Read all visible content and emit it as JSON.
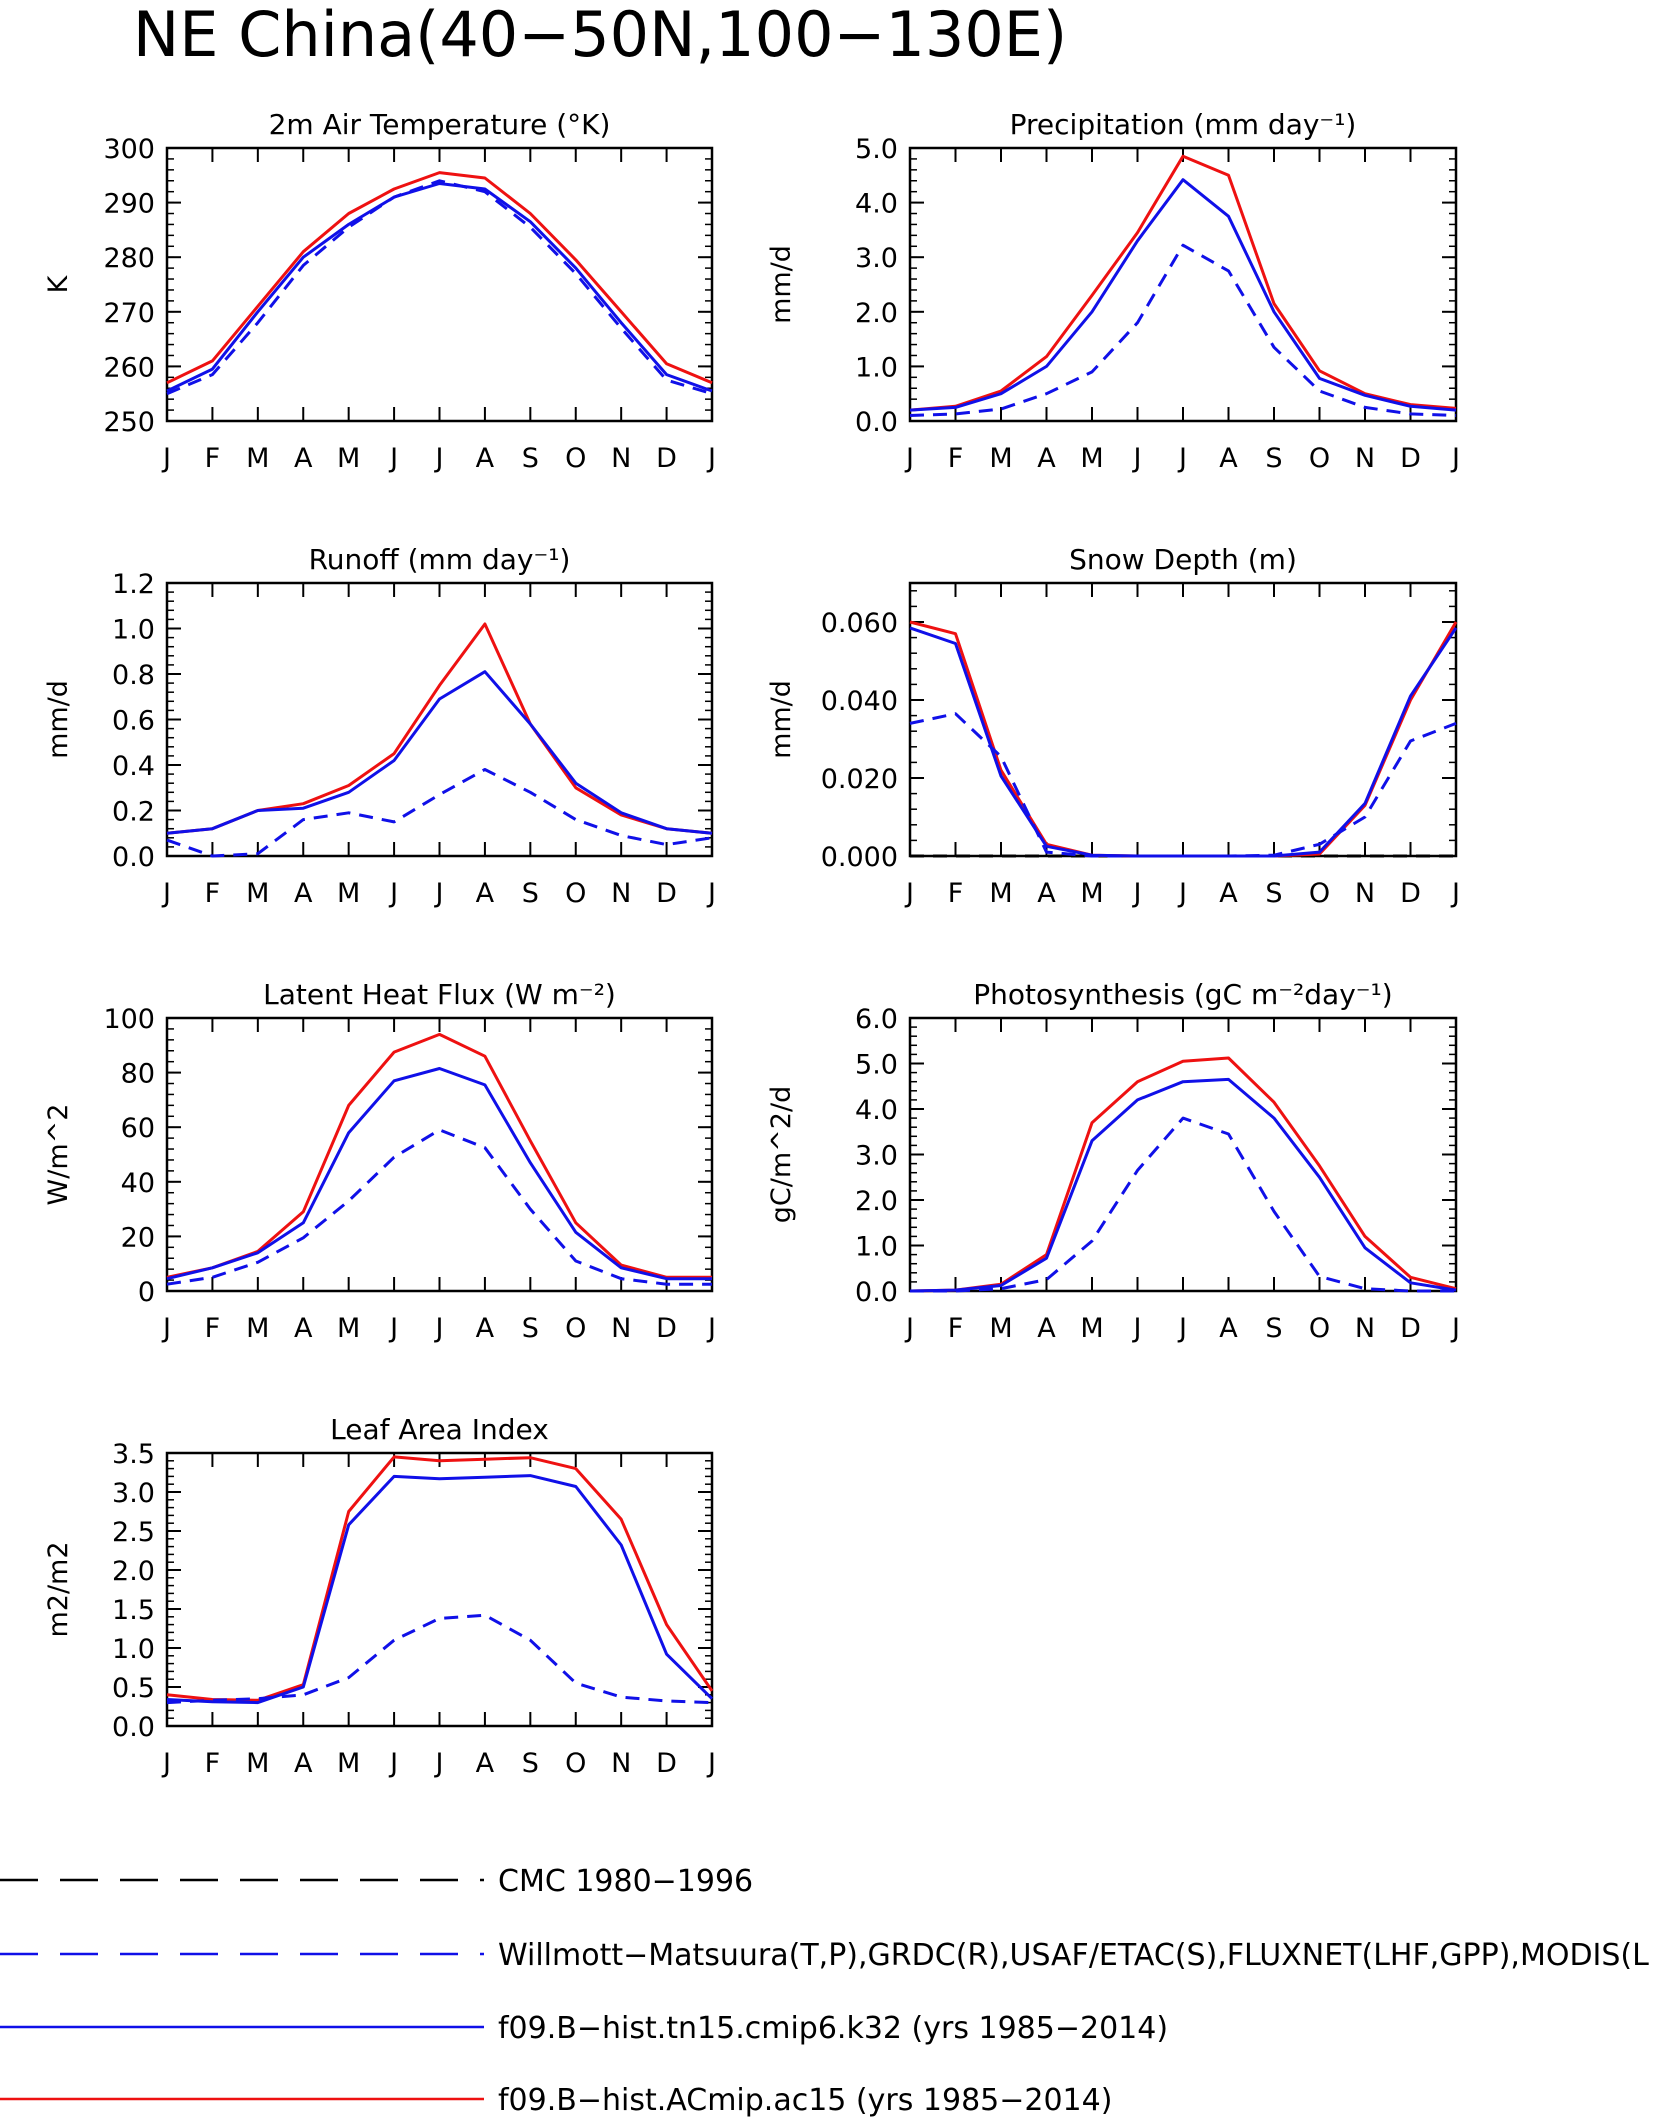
{
  "figure": {
    "title": "NE China(40−50N,100−130E)"
  },
  "colors": {
    "obs_black": "#000000",
    "obs_blue": "#1010e8",
    "model_blue": "#1010e8",
    "model_red": "#ee1111"
  },
  "legend": [
    {
      "label": "CMC 1980−1996",
      "color": "#000000",
      "style": "dashed"
    },
    {
      "label": "Willmott−Matsuura(T,P),GRDC(R),USAF/ETAC(S),FLUXNET(LHF,GPP),MODIS(L",
      "color": "#1010e8",
      "style": "dashed"
    },
    {
      "label": "f09.B−hist.tn15.cmip6.k32 (yrs 1985−2014)",
      "color": "#1010e8",
      "style": "solid"
    },
    {
      "label": "f09.B−hist.ACmip.ac15 (yrs 1985−2014)",
      "color": "#ee1111",
      "style": "solid"
    }
  ],
  "chart_data": [
    {
      "type": "line",
      "title": "2m Air Temperature (°K)",
      "xlabel": "",
      "ylabel": "K",
      "categories": [
        "J",
        "F",
        "M",
        "A",
        "M",
        "J",
        "J",
        "A",
        "S",
        "O",
        "N",
        "D",
        "J"
      ],
      "ylim": [
        250,
        300
      ],
      "yticks": [
        "250",
        "260",
        "270",
        "280",
        "290",
        "300"
      ],
      "series": [
        {
          "name": "f09.B−hist.ACmip.ac15 (yrs 1985−2014)",
          "style": "red-solid",
          "values": [
            257,
            261,
            271,
            281,
            288,
            292.5,
            295.5,
            294.5,
            288,
            279.5,
            270,
            260.5,
            257
          ]
        },
        {
          "name": "f09.B−hist.tn15.cmip6.k32 (yrs 1985−2014)",
          "style": "blue-solid",
          "values": [
            255.5,
            259.5,
            270,
            280,
            286,
            291,
            293.5,
            292.5,
            286.5,
            278,
            268,
            258.5,
            255.5
          ]
        },
        {
          "name": "Willmott−Matsuura(T,P),GRDC(R),USAF/ETAC(S),FLUXNET(LHF,GPP),MODIS(L",
          "style": "blue-dashed",
          "values": [
            255,
            258.5,
            268,
            278.5,
            285.5,
            291,
            294,
            292,
            285.5,
            277,
            267,
            257.5,
            255
          ]
        }
      ]
    },
    {
      "type": "line",
      "title": "Precipitation (mm day⁻¹)",
      "xlabel": "",
      "ylabel": "mm/d",
      "categories": [
        "J",
        "F",
        "M",
        "A",
        "M",
        "J",
        "J",
        "A",
        "S",
        "O",
        "N",
        "D",
        "J"
      ],
      "ylim": [
        0,
        5
      ],
      "yticks": [
        "0.0",
        "1.0",
        "2.0",
        "3.0",
        "4.0",
        "5.0"
      ],
      "series": [
        {
          "name": "f09.B−hist.ACmip.ac15 (yrs 1985−2014)",
          "style": "red-solid",
          "values": [
            0.2,
            0.27,
            0.55,
            1.18,
            2.3,
            3.45,
            4.85,
            4.5,
            2.15,
            0.92,
            0.5,
            0.3,
            0.23
          ]
        },
        {
          "name": "f09.B−hist.tn15.cmip6.k32 (yrs 1985−2014)",
          "style": "blue-solid",
          "values": [
            0.2,
            0.25,
            0.5,
            1.0,
            2.0,
            3.3,
            4.42,
            3.75,
            2.0,
            0.78,
            0.47,
            0.27,
            0.2
          ]
        },
        {
          "name": "Willmott−Matsuura(T,P),GRDC(R),USAF/ETAC(S),FLUXNET(LHF,GPP),MODIS(L",
          "style": "blue-dashed",
          "values": [
            0.1,
            0.13,
            0.22,
            0.5,
            0.9,
            1.8,
            3.22,
            2.75,
            1.35,
            0.55,
            0.25,
            0.13,
            0.1
          ]
        }
      ]
    },
    {
      "type": "line",
      "title": "Runoff (mm day⁻¹)",
      "xlabel": "",
      "ylabel": "mm/d",
      "categories": [
        "J",
        "F",
        "M",
        "A",
        "M",
        "J",
        "J",
        "A",
        "S",
        "O",
        "N",
        "D",
        "J"
      ],
      "ylim": [
        0,
        1.2
      ],
      "yticks": [
        "0.0",
        "0.2",
        "0.4",
        "0.6",
        "0.8",
        "1.0",
        "1.2"
      ],
      "series": [
        {
          "name": "f09.B−hist.ACmip.ac15 (yrs 1985−2014)",
          "style": "red-solid",
          "values": [
            0.1,
            0.12,
            0.2,
            0.23,
            0.31,
            0.45,
            0.75,
            1.02,
            0.58,
            0.3,
            0.18,
            0.12,
            0.1
          ]
        },
        {
          "name": "f09.B−hist.tn15.cmip6.k32 (yrs 1985−2014)",
          "style": "blue-solid",
          "values": [
            0.1,
            0.12,
            0.2,
            0.21,
            0.28,
            0.42,
            0.69,
            0.81,
            0.58,
            0.32,
            0.19,
            0.12,
            0.1
          ]
        },
        {
          "name": "Willmott−Matsuura(T,P),GRDC(R),USAF/ETAC(S),FLUXNET(LHF,GPP),MODIS(L",
          "style": "blue-dashed",
          "values": [
            0.07,
            0.0,
            0.01,
            0.16,
            0.19,
            0.15,
            0.27,
            0.38,
            0.28,
            0.16,
            0.09,
            0.05,
            0.08
          ]
        }
      ]
    },
    {
      "type": "line",
      "title": "Snow Depth (m)",
      "xlabel": "",
      "ylabel": "mm/d",
      "categories": [
        "J",
        "F",
        "M",
        "A",
        "M",
        "J",
        "J",
        "A",
        "S",
        "O",
        "N",
        "D",
        "J"
      ],
      "ylim": [
        0,
        0.07
      ],
      "yticks": [
        "0.000",
        "0.020",
        "0.040",
        "0.060"
      ],
      "ytick_values": [
        0,
        0.02,
        0.04,
        0.06
      ],
      "series": [
        {
          "name": "CMC 1980−1996",
          "style": "black-dashed",
          "values": [
            0,
            0,
            0,
            0,
            0,
            0,
            0,
            0,
            0,
            0,
            0,
            0,
            0
          ]
        },
        {
          "name": "f09.B−hist.ACmip.ac15 (yrs 1985−2014)",
          "style": "red-solid",
          "values": [
            0.06,
            0.057,
            0.022,
            0.003,
            0.0002,
            0,
            0,
            0,
            0,
            0.0005,
            0.013,
            0.04,
            0.06
          ]
        },
        {
          "name": "f09.B−hist.tn15.cmip6.k32 (yrs 1985−2014)",
          "style": "blue-solid",
          "values": [
            0.0585,
            0.0545,
            0.0205,
            0.0025,
            0.0002,
            0,
            0,
            0,
            0,
            0.001,
            0.0135,
            0.041,
            0.0585
          ]
        },
        {
          "name": "Willmott−Matsuura(T,P),GRDC(R),USAF/ETAC(S),FLUXNET(LHF,GPP),MODIS(L",
          "style": "blue-dashed",
          "values": [
            0.034,
            0.0365,
            0.0255,
            0.001,
            0,
            0,
            0,
            0,
            0.0002,
            0.003,
            0.01,
            0.0295,
            0.034
          ]
        }
      ]
    },
    {
      "type": "line",
      "title": "Latent Heat Flux (W m⁻²)",
      "xlabel": "",
      "ylabel": "W/m^2",
      "categories": [
        "J",
        "F",
        "M",
        "A",
        "M",
        "J",
        "J",
        "A",
        "S",
        "O",
        "N",
        "D",
        "J"
      ],
      "ylim": [
        0,
        100
      ],
      "yticks": [
        "0",
        "20",
        "40",
        "60",
        "80",
        "100"
      ],
      "series": [
        {
          "name": "f09.B−hist.ACmip.ac15 (yrs 1985−2014)",
          "style": "red-solid",
          "values": [
            5,
            8.5,
            14.5,
            29,
            68,
            87.5,
            94,
            86,
            55,
            25,
            9.5,
            5,
            5
          ]
        },
        {
          "name": "f09.B−hist.tn15.cmip6.k32 (yrs 1985−2014)",
          "style": "blue-solid",
          "values": [
            4.5,
            8.5,
            14,
            25,
            58,
            77,
            81.5,
            75.5,
            47,
            21.5,
            8.5,
            4.5,
            4.5
          ]
        },
        {
          "name": "Willmott−Matsuura(T,P),GRDC(R),USAF/ETAC(S),FLUXNET(LHF,GPP),MODIS(L",
          "style": "blue-dashed",
          "values": [
            2.5,
            5,
            10.5,
            19.5,
            33,
            49,
            59,
            52.5,
            30,
            11,
            4.5,
            2.5,
            2.5
          ]
        }
      ]
    },
    {
      "type": "line",
      "title": "Photosynthesis (gC m⁻²day⁻¹)",
      "xlabel": "",
      "ylabel": "gC/m^2/d",
      "categories": [
        "J",
        "F",
        "M",
        "A",
        "M",
        "J",
        "J",
        "A",
        "S",
        "O",
        "N",
        "D",
        "J"
      ],
      "ylim": [
        0,
        6
      ],
      "yticks": [
        "0.0",
        "1.0",
        "2.0",
        "3.0",
        "4.0",
        "5.0",
        "6.0"
      ],
      "series": [
        {
          "name": "f09.B−hist.ACmip.ac15 (yrs 1985−2014)",
          "style": "red-solid",
          "values": [
            0,
            0.02,
            0.15,
            0.8,
            3.7,
            4.6,
            5.05,
            5.12,
            4.15,
            2.75,
            1.2,
            0.3,
            0.05
          ]
        },
        {
          "name": "f09.B−hist.tn15.cmip6.k32 (yrs 1985−2014)",
          "style": "blue-solid",
          "values": [
            0,
            0.02,
            0.12,
            0.72,
            3.3,
            4.2,
            4.6,
            4.65,
            3.8,
            2.5,
            0.95,
            0.18,
            0.02
          ]
        },
        {
          "name": "Willmott−Matsuura(T,P),GRDC(R),USAF/ETAC(S),FLUXNET(LHF,GPP),MODIS(L",
          "style": "blue-dashed",
          "values": [
            0,
            0,
            0.05,
            0.25,
            1.1,
            2.65,
            3.8,
            3.45,
            1.75,
            0.32,
            0.05,
            0,
            0
          ]
        }
      ]
    },
    {
      "type": "line",
      "title": "Leaf Area Index",
      "xlabel": "",
      "ylabel": "m2/m2",
      "categories": [
        "J",
        "F",
        "M",
        "A",
        "M",
        "J",
        "J",
        "A",
        "S",
        "O",
        "N",
        "D",
        "J"
      ],
      "ylim": [
        0,
        3.5
      ],
      "yticks": [
        "0.0",
        "0.5",
        "1.0",
        "1.5",
        "2.0",
        "2.5",
        "3.0",
        "3.5"
      ],
      "series": [
        {
          "name": "f09.B−hist.ACmip.ac15 (yrs 1985−2014)",
          "style": "red-solid",
          "values": [
            0.4,
            0.34,
            0.33,
            0.53,
            2.75,
            3.45,
            3.4,
            3.42,
            3.44,
            3.3,
            2.65,
            1.3,
            0.45
          ]
        },
        {
          "name": "f09.B−hist.tn15.cmip6.k32 (yrs 1985−2014)",
          "style": "blue-solid",
          "values": [
            0.34,
            0.31,
            0.3,
            0.5,
            2.58,
            3.2,
            3.17,
            3.19,
            3.21,
            3.07,
            2.32,
            0.92,
            0.35
          ]
        },
        {
          "name": "Willmott−Matsuura(T,P),GRDC(R),USAF/ETAC(S),FLUXNET(LHF,GPP),MODIS(L",
          "style": "blue-dashed",
          "values": [
            0.3,
            0.33,
            0.35,
            0.4,
            0.62,
            1.1,
            1.38,
            1.42,
            1.1,
            0.55,
            0.37,
            0.32,
            0.3
          ]
        }
      ]
    }
  ]
}
